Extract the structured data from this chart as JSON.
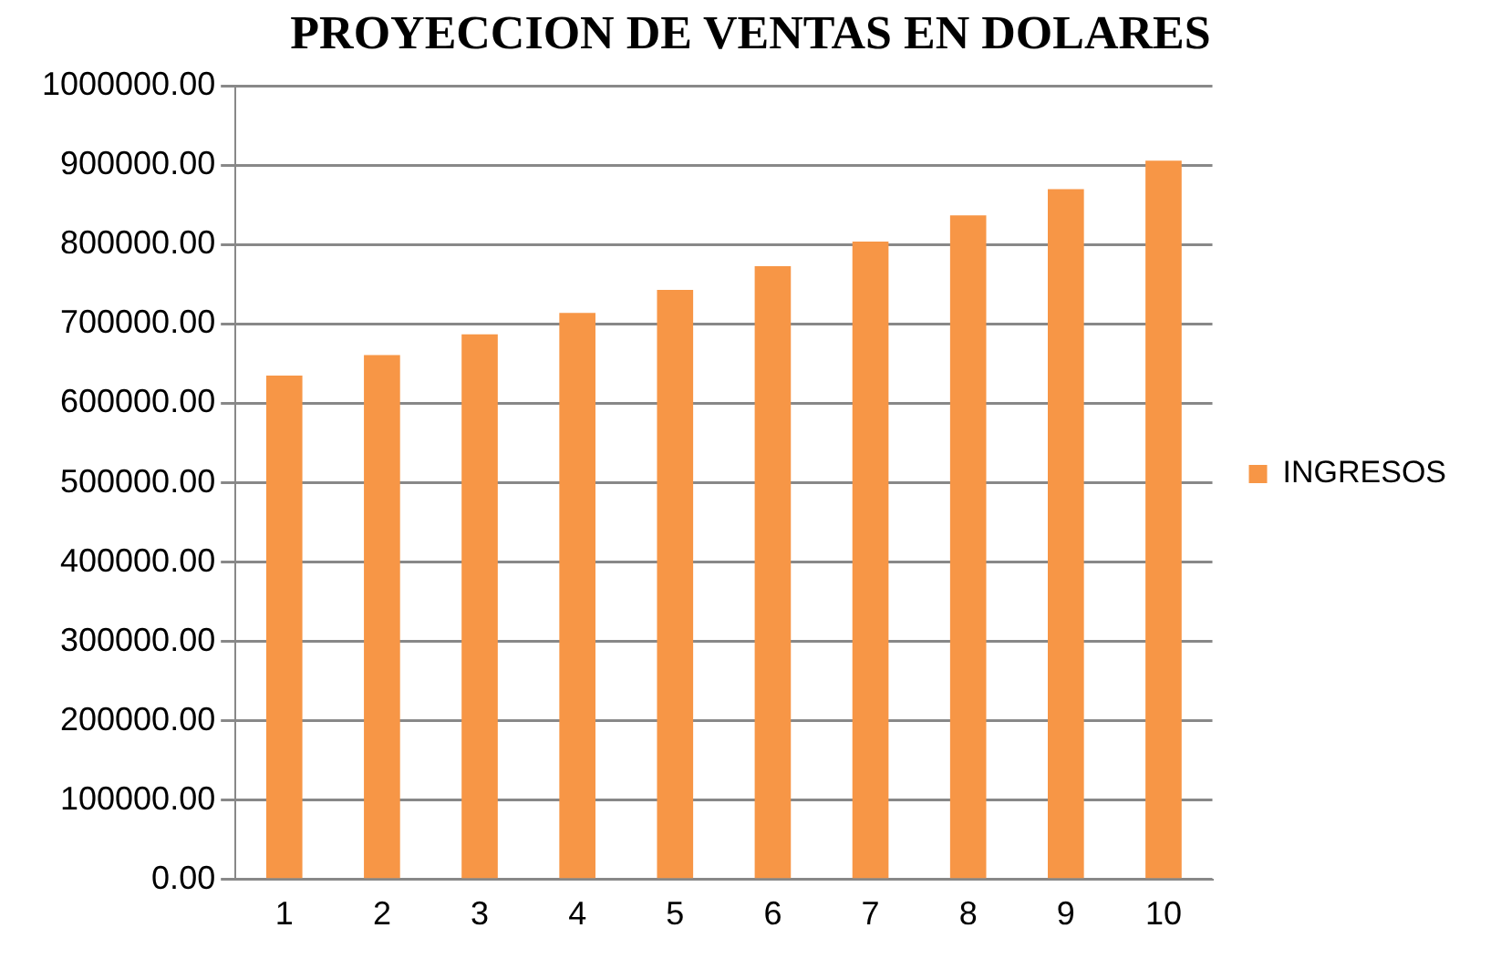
{
  "chart_data": {
    "type": "bar",
    "title": "PROYECCION DE VENTAS EN DOLARES",
    "categories": [
      "1",
      "2",
      "3",
      "4",
      "5",
      "6",
      "7",
      "8",
      "9",
      "10"
    ],
    "series": [
      {
        "name": "INGRESOS",
        "color": "#f79646",
        "values": [
          635000,
          661000,
          687000,
          714000,
          743000,
          773000,
          804000,
          837000,
          870000,
          906000
        ]
      }
    ],
    "ylim": [
      0,
      1000000
    ],
    "yticks": [
      {
        "value": 0,
        "label": "0.00"
      },
      {
        "value": 100000,
        "label": "100000.00"
      },
      {
        "value": 200000,
        "label": "200000.00"
      },
      {
        "value": 300000,
        "label": "300000.00"
      },
      {
        "value": 400000,
        "label": "400000.00"
      },
      {
        "value": 500000,
        "label": "500000.00"
      },
      {
        "value": 600000,
        "label": "600000.00"
      },
      {
        "value": 700000,
        "label": "700000.00"
      },
      {
        "value": 800000,
        "label": "800000.00"
      },
      {
        "value": 900000,
        "label": "900000.00"
      },
      {
        "value": 1000000,
        "label": "1000000.00"
      }
    ],
    "grid": "y",
    "legend": "right"
  }
}
